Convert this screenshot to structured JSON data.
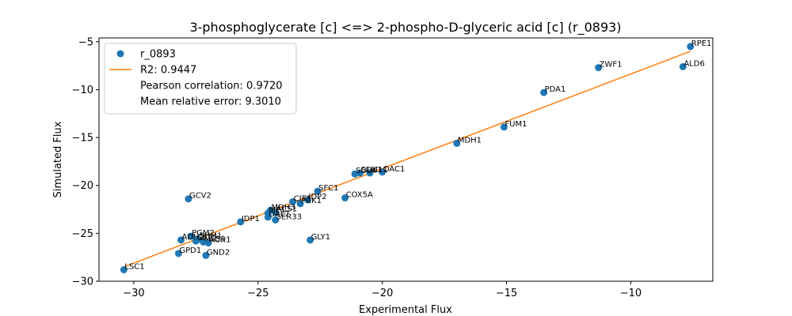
{
  "chart_data": {
    "type": "scatter",
    "title": "3-phosphoglycerate [c] <=> 2-phospho-D-glyceric acid [c] (r_0893)",
    "xlabel": "Experimental Flux",
    "ylabel": "Simulated Flux",
    "xlim": [
      -31.4,
      -6.7
    ],
    "ylim": [
      -30,
      -4.6
    ],
    "x_ticks": [
      -30,
      -25,
      -20,
      -15,
      -10
    ],
    "y_ticks": [
      -30,
      -25,
      -20,
      -15,
      -10,
      -5
    ],
    "grid": false,
    "legend_position": "top-left",
    "legend": {
      "scatter_label": "r_0893",
      "fit_label": "R2: 0.9447",
      "pearson_text": "Pearson correlation: 0.9720",
      "mre_text": "Mean relative error: 9.3010"
    },
    "point_color": "#1f77b4",
    "fit_color": "#ff7f0e",
    "fit_line": {
      "x": [
        -30.4,
        -7.6
      ],
      "y": [
        -28.5,
        -6.0
      ]
    },
    "points": [
      {
        "label": "RPE1",
        "x": -7.6,
        "y": -5.5
      },
      {
        "label": "ALD6",
        "x": -7.9,
        "y": -7.6
      },
      {
        "label": "ZWF1",
        "x": -11.3,
        "y": -7.7
      },
      {
        "label": "PDA1",
        "x": -13.5,
        "y": -10.3
      },
      {
        "label": "FUM1",
        "x": -15.1,
        "y": -13.9
      },
      {
        "label": "MDH1",
        "x": -17.0,
        "y": -15.6
      },
      {
        "label": "OAC1",
        "x": -20.0,
        "y": -18.6
      },
      {
        "label": "ICL1",
        "x": -20.5,
        "y": -18.7
      },
      {
        "label": "SDH1",
        "x": -20.9,
        "y": -18.7
      },
      {
        "label": "SOL4",
        "x": -21.1,
        "y": -18.8
      },
      {
        "label": "SFC1",
        "x": -22.6,
        "y": -20.6
      },
      {
        "label": "COX5A",
        "x": -21.5,
        "y": -21.3
      },
      {
        "label": "GCV2",
        "x": -27.8,
        "y": -21.4
      },
      {
        "label": "IDP2",
        "x": -23.0,
        "y": -21.5
      },
      {
        "label": "PCK1",
        "x": -23.3,
        "y": -21.9
      },
      {
        "label": "CIT1",
        "x": -23.6,
        "y": -21.7
      },
      {
        "label": "MDH3",
        "x": -24.5,
        "y": -22.6
      },
      {
        "label": "ACS1",
        "x": -24.3,
        "y": -22.8
      },
      {
        "label": "ME1",
        "x": -24.6,
        "y": -22.9
      },
      {
        "label": "DAL7",
        "x": -24.6,
        "y": -23.3
      },
      {
        "label": "SER33",
        "x": -24.3,
        "y": -23.6
      },
      {
        "label": "IDP1",
        "x": -25.7,
        "y": -23.8
      },
      {
        "label": "GLY1",
        "x": -22.9,
        "y": -25.7
      },
      {
        "label": "PGM2",
        "x": -27.7,
        "y": -25.3
      },
      {
        "label": "ADH2",
        "x": -28.1,
        "y": -25.7
      },
      {
        "label": "SHM1",
        "x": -27.4,
        "y": -25.6
      },
      {
        "label": "CAT2",
        "x": -27.5,
        "y": -25.8
      },
      {
        "label": "MLS1",
        "x": -27.2,
        "y": -25.9
      },
      {
        "label": "ACH1",
        "x": -27.0,
        "y": -26.0
      },
      {
        "label": "GPD1",
        "x": -28.2,
        "y": -27.1
      },
      {
        "label": "GND2",
        "x": -27.1,
        "y": -27.3
      },
      {
        "label": "LSC1",
        "x": -30.4,
        "y": -28.8
      }
    ]
  }
}
